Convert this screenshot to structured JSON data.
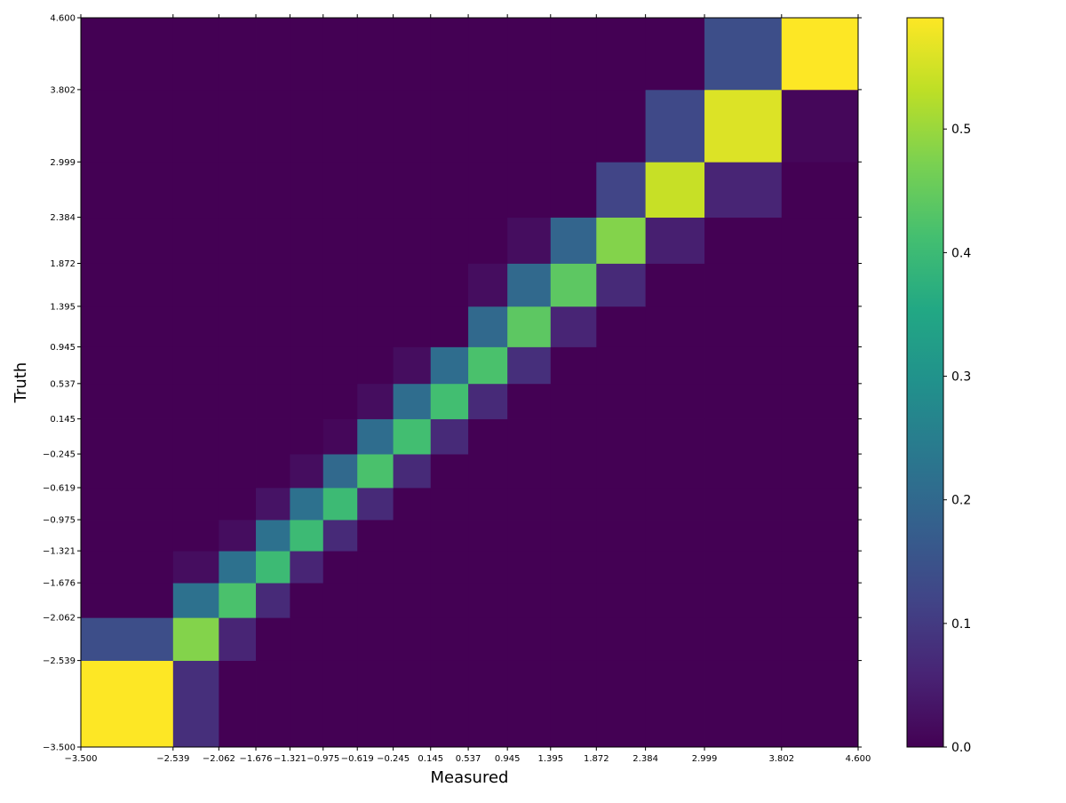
{
  "chart_data": {
    "type": "heatmap",
    "title": "",
    "xlabel": "Measured",
    "ylabel": "Truth",
    "xlim": [
      -3.5,
      4.6
    ],
    "ylim": [
      -3.5,
      4.6
    ],
    "x_edges": [
      -3.5,
      -2.539,
      -2.062,
      -1.676,
      -1.321,
      -0.975,
      -0.619,
      -0.245,
      0.145,
      0.537,
      0.945,
      1.395,
      1.872,
      2.384,
      2.999,
      3.802,
      4.6
    ],
    "y_edges": [
      -3.5,
      -2.539,
      -2.062,
      -1.676,
      -1.321,
      -0.975,
      -0.619,
      -0.245,
      0.145,
      0.537,
      0.945,
      1.395,
      1.872,
      2.384,
      2.999,
      3.802,
      4.6
    ],
    "x_tick_labels": [
      "−3.500",
      "−2.539",
      "−2.062",
      "−1.676",
      "−1.321",
      "−0.975",
      "−0.619",
      "−0.245",
      "0.145",
      "0.537",
      "0.945",
      "1.395",
      "1.872",
      "2.384",
      "2.999",
      "3.802",
      "4.600"
    ],
    "y_tick_labels": [
      "−3.500",
      "−2.539",
      "−2.062",
      "−1.676",
      "−1.321",
      "−0.975",
      "−0.619",
      "−0.245",
      "0.145",
      "0.537",
      "0.945",
      "1.395",
      "1.872",
      "2.384",
      "2.999",
      "3.802",
      "4.600"
    ],
    "values": [
      [
        0.59,
        0.08,
        0,
        0,
        0,
        0,
        0,
        0,
        0,
        0,
        0,
        0,
        0,
        0,
        0,
        0
      ],
      [
        0.14,
        0.48,
        0.06,
        0,
        0,
        0,
        0,
        0,
        0,
        0,
        0,
        0,
        0,
        0,
        0,
        0
      ],
      [
        0,
        0.22,
        0.42,
        0.07,
        0,
        0,
        0,
        0,
        0,
        0,
        0,
        0,
        0,
        0,
        0,
        0
      ],
      [
        0,
        0.02,
        0.22,
        0.4,
        0.06,
        0,
        0,
        0,
        0,
        0,
        0,
        0,
        0,
        0,
        0,
        0
      ],
      [
        0,
        0,
        0.02,
        0.22,
        0.4,
        0.07,
        0,
        0,
        0,
        0,
        0,
        0,
        0,
        0,
        0,
        0
      ],
      [
        0,
        0,
        0,
        0.03,
        0.22,
        0.4,
        0.07,
        0,
        0,
        0,
        0,
        0,
        0,
        0,
        0,
        0
      ],
      [
        0,
        0,
        0,
        0,
        0.02,
        0.2,
        0.42,
        0.07,
        0,
        0,
        0,
        0,
        0,
        0,
        0,
        0
      ],
      [
        0,
        0,
        0,
        0,
        0,
        0.01,
        0.21,
        0.41,
        0.07,
        0,
        0,
        0,
        0,
        0,
        0,
        0
      ],
      [
        0,
        0,
        0,
        0,
        0,
        0,
        0.02,
        0.21,
        0.41,
        0.07,
        0,
        0,
        0,
        0,
        0,
        0
      ],
      [
        0,
        0,
        0,
        0,
        0,
        0,
        0,
        0.02,
        0.21,
        0.42,
        0.08,
        0,
        0,
        0,
        0,
        0
      ],
      [
        0,
        0,
        0,
        0,
        0,
        0,
        0,
        0,
        0,
        0.2,
        0.44,
        0.06,
        0,
        0,
        0,
        0
      ],
      [
        0,
        0,
        0,
        0,
        0,
        0,
        0,
        0,
        0,
        0.02,
        0.2,
        0.44,
        0.07,
        0,
        0,
        0
      ],
      [
        0,
        0,
        0,
        0,
        0,
        0,
        0,
        0,
        0,
        0,
        0.02,
        0.19,
        0.48,
        0.05,
        0,
        0
      ],
      [
        0,
        0,
        0,
        0,
        0,
        0,
        0,
        0,
        0,
        0,
        0,
        0,
        0.12,
        0.54,
        0.06,
        0
      ],
      [
        0,
        0,
        0,
        0,
        0,
        0,
        0,
        0,
        0,
        0,
        0,
        0,
        0,
        0.13,
        0.56,
        0.01
      ],
      [
        0,
        0,
        0,
        0,
        0,
        0,
        0,
        0,
        0,
        0,
        0,
        0,
        0,
        0,
        0.14,
        0.59
      ]
    ],
    "colorbar": {
      "colormap": "viridis",
      "range": [
        0.0,
        0.59
      ],
      "ticks": [
        0.0,
        0.1,
        0.2,
        0.3,
        0.4,
        0.5
      ],
      "tick_labels": [
        "0.0",
        "0.1",
        "0.2",
        "0.3",
        "0.4",
        "0.5"
      ]
    },
    "grid": false,
    "legend": "none"
  }
}
